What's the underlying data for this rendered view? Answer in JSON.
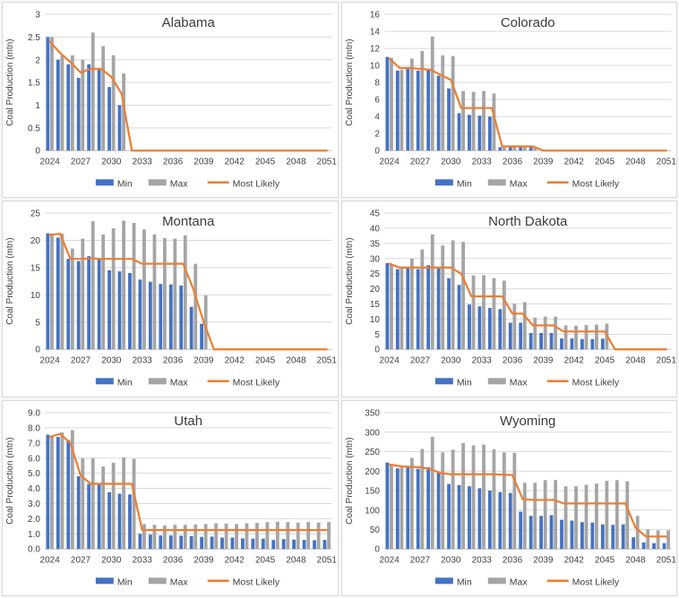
{
  "shared": {
    "xtick_labels": [
      "2024",
      "2027",
      "2030",
      "2033",
      "2036",
      "2039",
      "2042",
      "2045",
      "2048",
      "2051"
    ],
    "legend": {
      "min": "Min",
      "max": "Max",
      "most_likely": "Most Likely"
    },
    "colors": {
      "min": "#4472C4",
      "max": "#A5A5A5",
      "most_likely": "#ED7D31",
      "grid": "#D9D9D9",
      "axis": "#BFBFBF",
      "text": "#404040",
      "title": "#3B3B3B"
    }
  },
  "chart_data": [
    {
      "type": "bar",
      "title": "Alabama",
      "ylabel": "Coal Production (mtn)",
      "ylim": [
        0,
        3
      ],
      "ytick_labels": [
        "0",
        "0.5",
        "1",
        "1.5",
        "2",
        "2.5",
        "3"
      ],
      "x_first_year": 2024,
      "x_last_year": 2051,
      "legend_position": "bottom",
      "grid": true,
      "series": [
        {
          "name": "Min",
          "values": [
            2.5,
            2.0,
            1.9,
            1.6,
            1.9,
            1.8,
            1.4,
            1.0
          ]
        },
        {
          "name": "Max",
          "values": [
            2.5,
            2.1,
            2.1,
            2.0,
            2.6,
            2.3,
            2.1,
            1.7
          ]
        },
        {
          "name": "Most Likely",
          "values": [
            2.4,
            2.15,
            1.95,
            1.72,
            1.8,
            1.8,
            1.62,
            1.25,
            0,
            0,
            0,
            0,
            0,
            0,
            0,
            0,
            0,
            0,
            0,
            0,
            0,
            0,
            0,
            0,
            0,
            0,
            0,
            0
          ]
        }
      ]
    },
    {
      "type": "bar",
      "title": "Colorado",
      "ylabel": "Coal Production (mtn)",
      "ylim": [
        0,
        16
      ],
      "ytick_labels": [
        "0",
        "2",
        "4",
        "6",
        "8",
        "10",
        "12",
        "14",
        "16"
      ],
      "x_first_year": 2024,
      "x_last_year": 2051,
      "legend_position": "bottom",
      "grid": true,
      "series": [
        {
          "name": "Min",
          "values": [
            11.0,
            9.4,
            9.6,
            9.4,
            9.5,
            8.8,
            7.3,
            4.4,
            4.2,
            4.1,
            4.0,
            0.4,
            0.4,
            0.4,
            0.4
          ]
        },
        {
          "name": "Max",
          "values": [
            10.9,
            9.5,
            10.8,
            11.7,
            13.4,
            11.2,
            11.1,
            7.0,
            6.9,
            7.0,
            6.7,
            0.5,
            0.5,
            0.4,
            0.5
          ]
        },
        {
          "name": "Most Likely",
          "values": [
            10.8,
            9.7,
            9.7,
            9.6,
            9.5,
            8.9,
            8.3,
            5.0,
            5.0,
            5.0,
            5.0,
            0.5,
            0.5,
            0.5,
            0.5,
            0,
            0,
            0,
            0,
            0,
            0,
            0,
            0,
            0,
            0,
            0,
            0,
            0
          ]
        }
      ]
    },
    {
      "type": "bar",
      "title": "Montana",
      "ylabel": "Coal Production (mtn)",
      "ylim": [
        0,
        25
      ],
      "ytick_labels": [
        "0",
        "5",
        "10",
        "15",
        "20",
        "25"
      ],
      "x_first_year": 2024,
      "x_last_year": 2051,
      "legend_position": "bottom",
      "grid": true,
      "series": [
        {
          "name": "Min",
          "values": [
            21.3,
            20.5,
            16.6,
            16.2,
            17.1,
            16.5,
            14.5,
            14.3,
            14.0,
            12.8,
            12.4,
            12.0,
            11.9,
            11.7,
            7.8,
            4.7
          ]
        },
        {
          "name": "Max",
          "values": [
            21.0,
            21.2,
            18.5,
            20.3,
            23.5,
            21.1,
            22.2,
            23.6,
            23.2,
            22.0,
            21.1,
            20.4,
            20.3,
            20.9,
            15.7,
            9.9
          ]
        },
        {
          "name": "Most Likely",
          "values": [
            21.0,
            21.2,
            16.6,
            16.6,
            16.7,
            16.6,
            16.6,
            16.6,
            16.6,
            15.7,
            15.7,
            15.7,
            15.7,
            15.7,
            11.0,
            5.0,
            0,
            0,
            0,
            0,
            0,
            0,
            0,
            0,
            0,
            0,
            0,
            0
          ]
        }
      ]
    },
    {
      "type": "bar",
      "title": "North Dakota",
      "ylabel": "Coal Production (mtn)",
      "ylim": [
        0,
        45
      ],
      "ytick_labels": [
        "0",
        "5",
        "10",
        "15",
        "20",
        "25",
        "30",
        "35",
        "40",
        "45"
      ],
      "x_first_year": 2024,
      "x_last_year": 2051,
      "legend_position": "bottom",
      "grid": true,
      "series": [
        {
          "name": "Min",
          "values": [
            28.5,
            26.5,
            26.8,
            26.5,
            27.8,
            27.0,
            23.5,
            21.3,
            14.8,
            14.2,
            13.7,
            13.3,
            8.8,
            8.8,
            5.4,
            5.4,
            5.4,
            3.6,
            3.6,
            3.4,
            3.4,
            3.5
          ]
        },
        {
          "name": "Max",
          "values": [
            28.0,
            27.0,
            30.0,
            33.0,
            38.0,
            34.3,
            36.0,
            35.5,
            24.4,
            24.5,
            23.5,
            22.7,
            15.1,
            15.6,
            10.5,
            10.8,
            10.8,
            7.9,
            7.8,
            8.0,
            8.2,
            8.5
          ]
        },
        {
          "name": "Most Likely",
          "values": [
            28.3,
            27.0,
            27.0,
            27.0,
            27.0,
            27.0,
            27.0,
            25.0,
            17.5,
            17.5,
            17.5,
            17.5,
            11.8,
            11.8,
            7.9,
            7.9,
            7.9,
            5.9,
            5.9,
            5.9,
            5.9,
            5.9,
            0,
            0,
            0,
            0,
            0,
            0
          ]
        }
      ]
    },
    {
      "type": "bar",
      "title": "Utah",
      "ylabel": "Coal Production (mtn)",
      "ylim": [
        0,
        9
      ],
      "ytick_labels": [
        "0.0",
        "1.0",
        "2.0",
        "3.0",
        "4.0",
        "5.0",
        "6.0",
        "7.0",
        "8.0",
        "9.0"
      ],
      "x_first_year": 2024,
      "x_last_year": 2051,
      "legend_position": "bottom",
      "grid": true,
      "series": [
        {
          "name": "Min",
          "values": [
            7.55,
            7.4,
            7.2,
            4.8,
            4.3,
            4.3,
            3.75,
            3.65,
            3.6,
            1.0,
            0.95,
            0.9,
            0.9,
            0.88,
            0.85,
            0.8,
            0.82,
            0.75,
            0.75,
            0.7,
            0.68,
            0.68,
            0.6,
            0.65,
            0.62,
            0.6,
            0.58,
            0.6
          ]
        },
        {
          "name": "Max",
          "values": [
            7.5,
            7.7,
            7.85,
            6.0,
            6.0,
            5.45,
            5.7,
            6.05,
            5.95,
            1.65,
            1.6,
            1.55,
            1.6,
            1.6,
            1.62,
            1.65,
            1.7,
            1.68,
            1.65,
            1.7,
            1.72,
            1.78,
            1.8,
            1.78,
            1.75,
            1.78,
            1.75,
            1.78
          ]
        },
        {
          "name": "Most Likely",
          "values": [
            7.4,
            7.6,
            7.0,
            4.85,
            4.3,
            4.3,
            4.3,
            4.3,
            4.3,
            1.25,
            1.25,
            1.25,
            1.25,
            1.25,
            1.25,
            1.25,
            1.25,
            1.25,
            1.25,
            1.25,
            1.25,
            1.25,
            1.25,
            1.25,
            1.25,
            1.25,
            1.25,
            1.25
          ]
        }
      ]
    },
    {
      "type": "bar",
      "title": "Wyoming",
      "ylabel": "Coal Production (mtn)",
      "ylim": [
        0,
        350
      ],
      "ytick_labels": [
        "0",
        "50",
        "100",
        "150",
        "200",
        "250",
        "300",
        "350"
      ],
      "x_first_year": 2024,
      "x_last_year": 2051,
      "legend_position": "bottom",
      "grid": true,
      "series": [
        {
          "name": "Min",
          "values": [
            222,
            207,
            210,
            206,
            210,
            196,
            167,
            164,
            161,
            156,
            150,
            146,
            144,
            96,
            85,
            85,
            87,
            75,
            73,
            69,
            68,
            63,
            62,
            63,
            30,
            17,
            15,
            15
          ]
        },
        {
          "name": "Max",
          "values": [
            217,
            210,
            234,
            257,
            288,
            248,
            255,
            272,
            266,
            268,
            256,
            248,
            247,
            170,
            170,
            177,
            177,
            161,
            161,
            165,
            168,
            175,
            177,
            174,
            85,
            50,
            48,
            48
          ]
        },
        {
          "name": "Most Likely",
          "values": [
            217,
            213,
            211,
            210,
            205,
            195,
            192,
            192,
            192,
            192,
            192,
            191,
            190,
            128,
            126,
            126,
            126,
            117,
            117,
            117,
            117,
            117,
            117,
            117,
            55,
            32,
            32,
            32
          ]
        }
      ]
    }
  ]
}
